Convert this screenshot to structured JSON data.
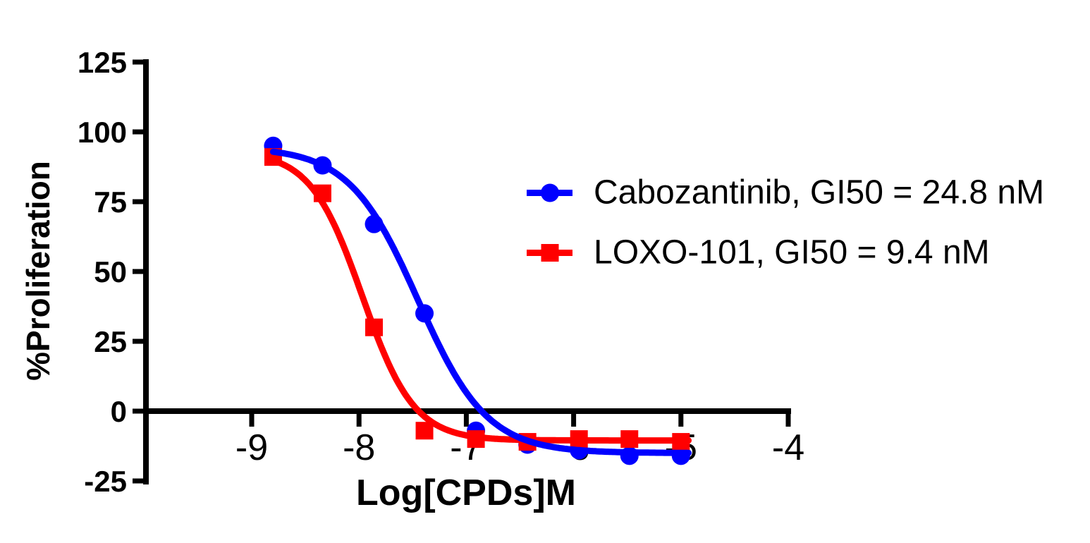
{
  "figure": {
    "background_color": "#ffffff",
    "text_color": "#000000",
    "axis_color": "#000000"
  },
  "chart_data": {
    "type": "line",
    "title": "",
    "xlabel": "Log[CPDs]M",
    "ylabel": "%Proliferation",
    "xlim": [
      -10,
      -4
    ],
    "ylim": [
      -25,
      125
    ],
    "x_ticks": [
      -9,
      -8,
      -7,
      -6,
      -5,
      -4
    ],
    "y_ticks": [
      125,
      100,
      75,
      50,
      25,
      0,
      -25
    ],
    "grid": false,
    "legend_position": "inside-upper-right",
    "x": [
      -8.8,
      -8.34,
      -7.86,
      -7.39,
      -6.91,
      -6.43,
      -5.95,
      -5.48,
      -5.0
    ],
    "series": [
      {
        "name": "Cabozantinib, GI50 = 24.8 nM",
        "compound": "Cabozantinib",
        "gi50_label": "GI50 = 24.8 nM",
        "color": "#0000ff",
        "marker": "circle",
        "values": [
          95,
          88,
          67,
          35,
          -7,
          -12,
          -14,
          -16,
          -16
        ],
        "fit_curve": {
          "top": 94.5,
          "bottom": -15,
          "log_gi50": -7.45,
          "hill_slope": -1.35
        }
      },
      {
        "name": "LOXO-101, GI50 = 9.4 nM",
        "compound": "LOXO-101",
        "gi50_label": "GI50 = 9.4 nM",
        "color": "#ff0000",
        "marker": "square",
        "values": [
          91,
          78,
          30,
          -7,
          -10,
          -11,
          -10,
          -10,
          -11
        ],
        "fit_curve": {
          "top": 93,
          "bottom": -10.5,
          "log_gi50": -7.97,
          "hill_slope": -1.8
        }
      }
    ]
  }
}
